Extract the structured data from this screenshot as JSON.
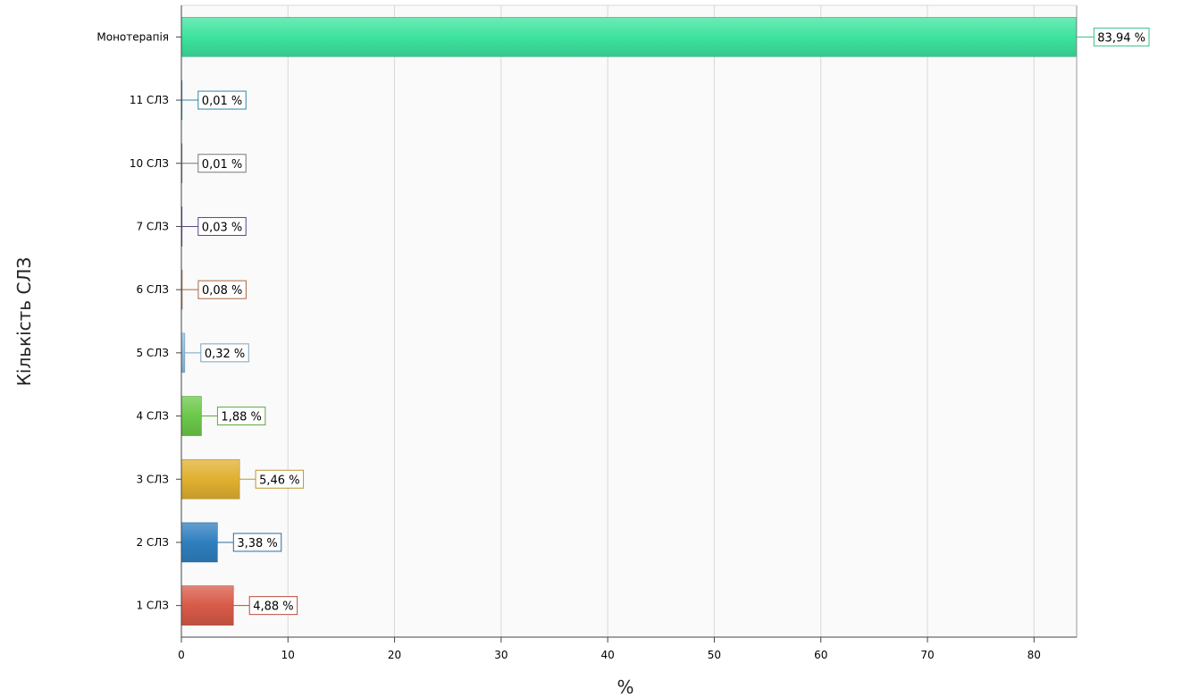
{
  "chart_data": {
    "type": "bar",
    "orientation": "horizontal",
    "categories": [
      "Монотерапія",
      "11 СЛЗ",
      "10 СЛЗ",
      "7 СЛЗ",
      "6 СЛЗ",
      "5 СЛЗ",
      "4 СЛЗ",
      "3 СЛЗ",
      "2 СЛЗ",
      "1 СЛЗ"
    ],
    "values": [
      83.94,
      0.01,
      0.01,
      0.03,
      0.08,
      0.32,
      1.88,
      5.46,
      3.38,
      4.88
    ],
    "data_labels": [
      "83,94 %",
      "0,01 %",
      "0,01 %",
      "0,03 %",
      "0,08 %",
      "0,32 %",
      "1,88 %",
      "5,46 %",
      "3,38 %",
      "4,88 %"
    ],
    "colors": [
      "#3de39f",
      "#3a9bc7",
      "#8c8c8c",
      "#6b4fa0",
      "#c8784a",
      "#8fbfe0",
      "#6cc84a",
      "#e0b030",
      "#2f7fc0",
      "#d85a48"
    ],
    "xlabel": "%",
    "ylabel": "Кількість СЛЗ",
    "xlim": [
      0,
      84
    ],
    "xticks": [
      0,
      10,
      20,
      30,
      40,
      50,
      60,
      70,
      80
    ],
    "grid": true,
    "legend": "none"
  }
}
